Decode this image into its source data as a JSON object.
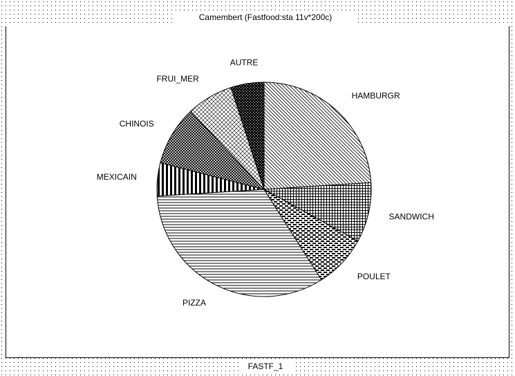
{
  "chart_data": {
    "type": "pie",
    "title": "Camembert (Fastfood:sta 11v*200c)",
    "footer": "FASTF_1",
    "categories": [
      "HAMBURGR",
      "SANDWICH",
      "POULET",
      "PIZZA",
      "MEXICAIN",
      "CHINOIS",
      "FRUI_MER",
      "AUTRE"
    ],
    "values": [
      24,
      9,
      8,
      33,
      5,
      9,
      7,
      5
    ]
  }
}
